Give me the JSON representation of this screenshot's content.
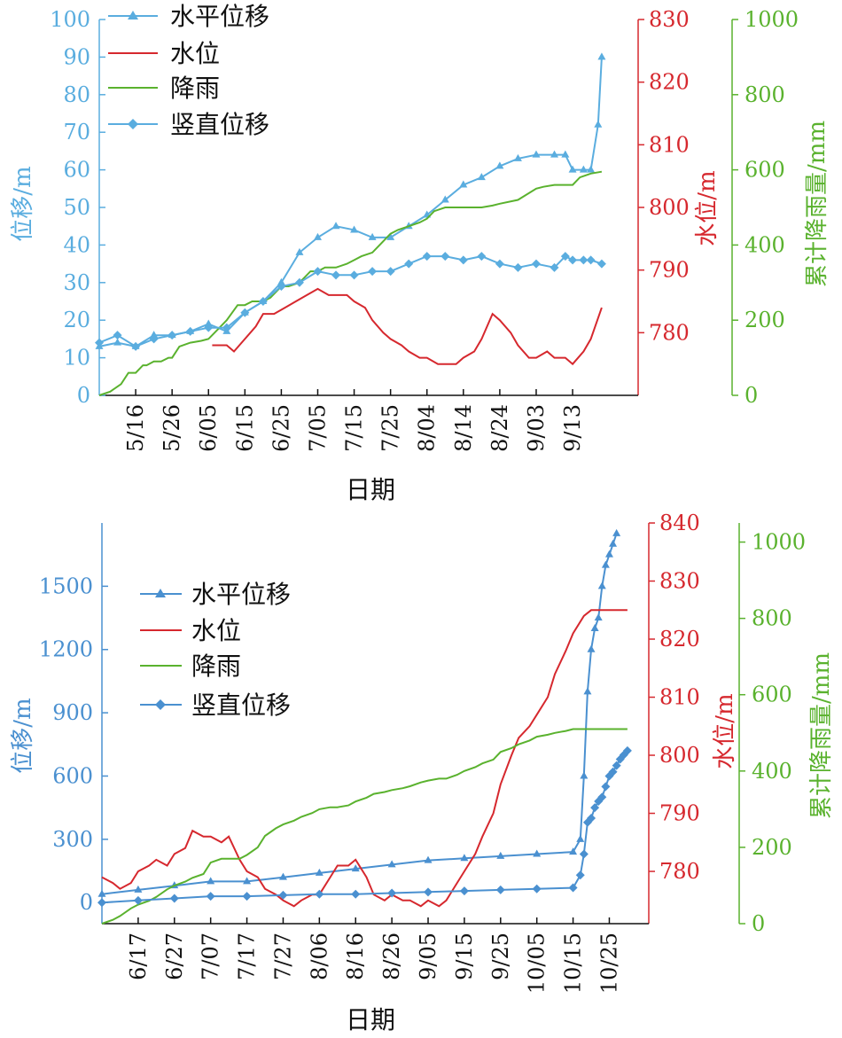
{
  "colors": {
    "displacement": "#5aaddf",
    "displacement_b": "#4a90d0",
    "water": "#d6282e",
    "rain": "#5ab22e",
    "axis_black": "#111111"
  },
  "chart_data": [
    {
      "type": "line",
      "xlabel": "日期",
      "x_tick_labels": [
        "5/16",
        "5/26",
        "6/05",
        "6/15",
        "6/25",
        "7/05",
        "7/15",
        "7/25",
        "8/04",
        "8/14",
        "8/24",
        "9/03",
        "9/13"
      ],
      "x_tick_days": [
        10,
        20,
        30,
        40,
        50,
        60,
        70,
        80,
        90,
        100,
        110,
        120,
        130
      ],
      "x_range_days": [
        0,
        148
      ],
      "y_left": {
        "label": "位移/m",
        "range": [
          0,
          100
        ],
        "ticks": [
          "0",
          "10",
          "20",
          "30",
          "40",
          "50",
          "60",
          "70",
          "80",
          "90",
          "100"
        ]
      },
      "y_right_1": {
        "label": "水位/m",
        "range": [
          770,
          830
        ],
        "ticks": [
          "780",
          "790",
          "800",
          "810",
          "820",
          "830"
        ]
      },
      "y_right_2": {
        "label": "累计降雨量/mm",
        "range": [
          0,
          1000
        ],
        "ticks": [
          "0",
          "200",
          "400",
          "600",
          "800",
          "1000"
        ]
      },
      "legend": [
        "水平位移",
        "水位",
        "降雨",
        "竖直位移"
      ],
      "series": [
        {
          "name": "水平位移",
          "axis": "left",
          "marker": "triangle",
          "x": [
            0,
            5,
            10,
            15,
            20,
            25,
            30,
            35,
            40,
            45,
            50,
            55,
            60,
            65,
            70,
            75,
            80,
            85,
            90,
            95,
            100,
            105,
            110,
            115,
            120,
            125,
            128,
            130,
            133,
            135,
            137,
            138
          ],
          "y": [
            13,
            14,
            13,
            16,
            16,
            17,
            19,
            17,
            22,
            25,
            30,
            38,
            42,
            45,
            44,
            42,
            42,
            45,
            48,
            52,
            56,
            58,
            61,
            63,
            64,
            64,
            64,
            60,
            60,
            60,
            72,
            90
          ]
        },
        {
          "name": "水位",
          "axis": "right1",
          "x": [
            31,
            35,
            37,
            40,
            43,
            45,
            48,
            51,
            54,
            57,
            60,
            63,
            65,
            68,
            70,
            73,
            75,
            78,
            80,
            83,
            85,
            88,
            90,
            93,
            95,
            98,
            100,
            103,
            105,
            108,
            110,
            113,
            115,
            118,
            120,
            123,
            125,
            128,
            130,
            133,
            135,
            138
          ],
          "y": [
            778,
            778,
            777,
            779,
            781,
            783,
            783,
            784,
            785,
            786,
            787,
            786,
            786,
            786,
            785,
            784,
            782,
            780,
            779,
            778,
            777,
            776,
            776,
            775,
            775,
            775,
            776,
            777,
            779,
            783,
            782,
            780,
            778,
            776,
            776,
            777,
            776,
            776,
            775,
            777,
            779,
            784
          ]
        },
        {
          "name": "降雨",
          "axis": "right2",
          "x": [
            0,
            3,
            6,
            8,
            10,
            12,
            13,
            15,
            17,
            19,
            20,
            22,
            25,
            28,
            30,
            32,
            35,
            38,
            40,
            42,
            45,
            47,
            50,
            52,
            55,
            58,
            60,
            62,
            65,
            68,
            70,
            72,
            75,
            77,
            80,
            82,
            85,
            88,
            90,
            92,
            95,
            100,
            105,
            108,
            110,
            115,
            120,
            122,
            125,
            130,
            132,
            135,
            138
          ],
          "y": [
            0,
            10,
            30,
            60,
            60,
            80,
            80,
            90,
            90,
            100,
            100,
            130,
            140,
            145,
            150,
            170,
            200,
            240,
            240,
            250,
            250,
            260,
            290,
            290,
            300,
            330,
            330,
            340,
            340,
            350,
            360,
            370,
            380,
            400,
            430,
            440,
            450,
            460,
            470,
            490,
            500,
            500,
            500,
            505,
            510,
            520,
            550,
            555,
            560,
            560,
            580,
            590,
            595
          ]
        },
        {
          "name": "竖直位移",
          "axis": "left",
          "marker": "diamond",
          "x": [
            0,
            5,
            10,
            15,
            20,
            25,
            30,
            35,
            40,
            45,
            50,
            55,
            60,
            65,
            70,
            75,
            80,
            85,
            90,
            95,
            100,
            105,
            110,
            115,
            120,
            125,
            128,
            130,
            133,
            135,
            138
          ],
          "y": [
            14,
            16,
            13,
            15,
            16,
            17,
            18,
            18,
            22,
            25,
            29,
            30,
            33,
            32,
            32,
            33,
            33,
            35,
            37,
            37,
            36,
            37,
            35,
            34,
            35,
            34,
            37,
            36,
            36,
            36,
            35
          ]
        }
      ]
    },
    {
      "type": "line",
      "xlabel": "日期",
      "x_tick_labels": [
        "6/17",
        "6/27",
        "7/07",
        "7/17",
        "7/27",
        "8/06",
        "8/16",
        "8/26",
        "9/05",
        "9/15",
        "9/25",
        "10/05",
        "10/15",
        "10/25"
      ],
      "x_tick_days": [
        10,
        20,
        30,
        40,
        50,
        60,
        70,
        80,
        90,
        100,
        110,
        120,
        130,
        140
      ],
      "x_range_days": [
        0,
        146
      ],
      "y_left": {
        "label": "位移/m",
        "range": [
          -100,
          1800
        ],
        "ticks": [
          "0",
          "300",
          "600",
          "900",
          "1200",
          "1500"
        ]
      },
      "y_right_1": {
        "label": "水位/m",
        "range": [
          771,
          840
        ],
        "ticks": [
          "780",
          "790",
          "800",
          "810",
          "820",
          "830",
          "840"
        ]
      },
      "y_right_2": {
        "label": "累计降雨量/mm",
        "range": [
          0,
          1050
        ],
        "ticks": [
          "0",
          "200",
          "400",
          "600",
          "800",
          "1000"
        ]
      },
      "legend": [
        "水平位移",
        "水位",
        "降雨",
        "竖直位移"
      ],
      "series": [
        {
          "name": "水平位移",
          "axis": "left",
          "marker": "triangle",
          "x": [
            0,
            10,
            20,
            30,
            40,
            50,
            60,
            70,
            80,
            90,
            100,
            110,
            120,
            130,
            132,
            133,
            134,
            135,
            136,
            137,
            138,
            139,
            140,
            141,
            142
          ],
          "y": [
            40,
            60,
            80,
            100,
            100,
            120,
            140,
            160,
            180,
            200,
            210,
            220,
            230,
            240,
            300,
            600,
            1000,
            1200,
            1300,
            1350,
            1500,
            1600,
            1650,
            1700,
            1750
          ]
        },
        {
          "name": "水位",
          "axis": "right1",
          "x": [
            0,
            3,
            5,
            8,
            10,
            13,
            15,
            18,
            20,
            23,
            25,
            28,
            30,
            33,
            35,
            38,
            40,
            43,
            45,
            48,
            50,
            53,
            55,
            58,
            60,
            63,
            65,
            68,
            70,
            73,
            75,
            78,
            80,
            83,
            85,
            88,
            90,
            93,
            95,
            98,
            100,
            103,
            105,
            108,
            110,
            113,
            115,
            118,
            120,
            123,
            125,
            128,
            130,
            133,
            135,
            138,
            140,
            143,
            145
          ],
          "y": [
            779,
            778,
            777,
            778,
            780,
            781,
            782,
            781,
            783,
            784,
            787,
            786,
            786,
            785,
            786,
            782,
            780,
            779,
            777,
            776,
            775,
            774,
            775,
            776,
            776,
            779,
            781,
            781,
            782,
            779,
            776,
            775,
            776,
            775,
            775,
            774,
            775,
            774,
            775,
            778,
            780,
            783,
            786,
            790,
            795,
            800,
            803,
            805,
            807,
            810,
            814,
            818,
            821,
            824,
            825,
            825,
            825,
            825,
            825
          ]
        },
        {
          "name": "降雨",
          "axis": "right2",
          "x": [
            0,
            3,
            5,
            8,
            10,
            13,
            15,
            18,
            20,
            23,
            25,
            28,
            30,
            33,
            35,
            38,
            40,
            43,
            45,
            48,
            50,
            53,
            55,
            58,
            60,
            63,
            65,
            68,
            70,
            73,
            75,
            78,
            80,
            83,
            85,
            88,
            90,
            93,
            95,
            98,
            100,
            103,
            105,
            108,
            110,
            113,
            115,
            118,
            120,
            123,
            125,
            128,
            130,
            133,
            135,
            138,
            140,
            143,
            145
          ],
          "y": [
            0,
            10,
            20,
            40,
            50,
            60,
            70,
            90,
            100,
            110,
            120,
            130,
            160,
            170,
            170,
            170,
            180,
            200,
            230,
            250,
            260,
            270,
            280,
            290,
            300,
            305,
            305,
            310,
            320,
            330,
            340,
            345,
            350,
            355,
            360,
            370,
            375,
            380,
            380,
            390,
            400,
            410,
            420,
            430,
            450,
            460,
            470,
            480,
            490,
            495,
            500,
            505,
            510,
            510,
            510,
            510,
            510,
            510,
            510
          ]
        },
        {
          "name": "竖直位移",
          "axis": "left",
          "marker": "diamond",
          "x": [
            0,
            10,
            20,
            30,
            40,
            50,
            60,
            70,
            80,
            90,
            100,
            110,
            120,
            130,
            132,
            133,
            134,
            135,
            136,
            137,
            138,
            139,
            140,
            141,
            142,
            143,
            144,
            145
          ],
          "y": [
            0,
            10,
            20,
            30,
            30,
            35,
            40,
            40,
            45,
            50,
            55,
            60,
            65,
            70,
            130,
            230,
            380,
            400,
            450,
            480,
            500,
            550,
            600,
            620,
            650,
            680,
            700,
            720
          ]
        }
      ]
    }
  ]
}
